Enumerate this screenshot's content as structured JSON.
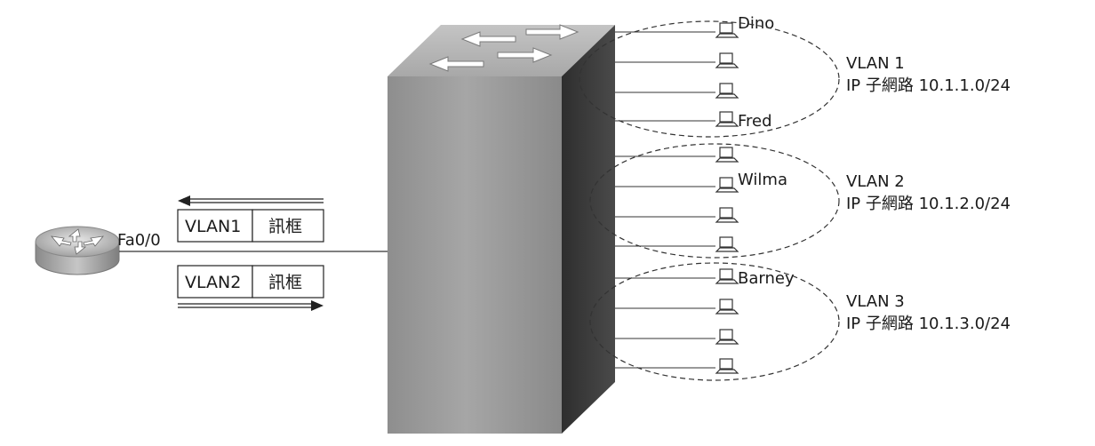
{
  "router": {
    "port_label": "Fa0/0"
  },
  "frames": [
    {
      "vlan": "VLAN1",
      "payload": "訊框"
    },
    {
      "vlan": "VLAN2",
      "payload": "訊框"
    }
  ],
  "hosts": [
    {
      "label": "Dino"
    },
    {
      "label": ""
    },
    {
      "label": ""
    },
    {
      "label": "Fred"
    },
    {
      "label": ""
    },
    {
      "label": "Wilma"
    },
    {
      "label": ""
    },
    {
      "label": ""
    },
    {
      "label": "Barney"
    },
    {
      "label": ""
    },
    {
      "label": ""
    },
    {
      "label": ""
    }
  ],
  "vlans": [
    {
      "name": "VLAN 1",
      "subnet": "IP 子網路 10.1.1.0/24"
    },
    {
      "name": "VLAN 2",
      "subnet": "IP 子網路 10.1.2.0/24"
    },
    {
      "name": "VLAN 3",
      "subnet": "IP 子網路 10.1.3.0/24"
    }
  ],
  "colors": {
    "switch_front": "#9a9a9a",
    "switch_side": "#3a3a3a",
    "switch_top": "#b8b8b8",
    "line": "#333333"
  }
}
